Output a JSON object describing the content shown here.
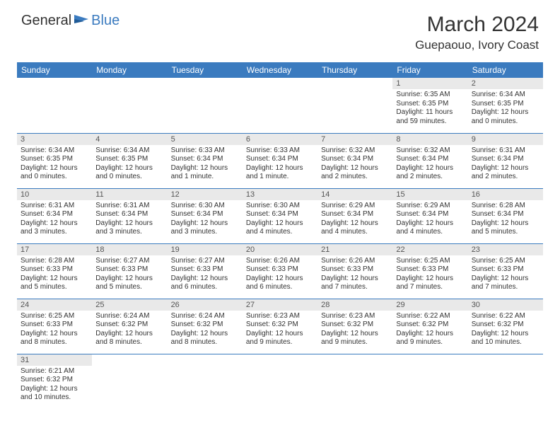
{
  "brand": {
    "part1": "General",
    "part2": "Blue"
  },
  "title": "March 2024",
  "location": "Guepaouo, Ivory Coast",
  "colors": {
    "header_bg": "#3b7bbf",
    "header_text": "#ffffff",
    "daynum_bg": "#e9e9e9",
    "daynum_text": "#555555",
    "border": "#3b7bbf",
    "body_text": "#333333"
  },
  "typography": {
    "title_fontsize": 30,
    "location_fontsize": 17,
    "dayhead_fontsize": 12,
    "daynum_fontsize": 11,
    "body_fontsize": 10
  },
  "dayHeaders": [
    "Sunday",
    "Monday",
    "Tuesday",
    "Wednesday",
    "Thursday",
    "Friday",
    "Saturday"
  ],
  "weeks": [
    [
      null,
      null,
      null,
      null,
      null,
      {
        "n": "1",
        "sr": "Sunrise: 6:35 AM",
        "ss": "Sunset: 6:35 PM",
        "dl1": "Daylight: 11 hours",
        "dl2": "and 59 minutes."
      },
      {
        "n": "2",
        "sr": "Sunrise: 6:34 AM",
        "ss": "Sunset: 6:35 PM",
        "dl1": "Daylight: 12 hours",
        "dl2": "and 0 minutes."
      }
    ],
    [
      {
        "n": "3",
        "sr": "Sunrise: 6:34 AM",
        "ss": "Sunset: 6:35 PM",
        "dl1": "Daylight: 12 hours",
        "dl2": "and 0 minutes."
      },
      {
        "n": "4",
        "sr": "Sunrise: 6:34 AM",
        "ss": "Sunset: 6:35 PM",
        "dl1": "Daylight: 12 hours",
        "dl2": "and 0 minutes."
      },
      {
        "n": "5",
        "sr": "Sunrise: 6:33 AM",
        "ss": "Sunset: 6:34 PM",
        "dl1": "Daylight: 12 hours",
        "dl2": "and 1 minute."
      },
      {
        "n": "6",
        "sr": "Sunrise: 6:33 AM",
        "ss": "Sunset: 6:34 PM",
        "dl1": "Daylight: 12 hours",
        "dl2": "and 1 minute."
      },
      {
        "n": "7",
        "sr": "Sunrise: 6:32 AM",
        "ss": "Sunset: 6:34 PM",
        "dl1": "Daylight: 12 hours",
        "dl2": "and 2 minutes."
      },
      {
        "n": "8",
        "sr": "Sunrise: 6:32 AM",
        "ss": "Sunset: 6:34 PM",
        "dl1": "Daylight: 12 hours",
        "dl2": "and 2 minutes."
      },
      {
        "n": "9",
        "sr": "Sunrise: 6:31 AM",
        "ss": "Sunset: 6:34 PM",
        "dl1": "Daylight: 12 hours",
        "dl2": "and 2 minutes."
      }
    ],
    [
      {
        "n": "10",
        "sr": "Sunrise: 6:31 AM",
        "ss": "Sunset: 6:34 PM",
        "dl1": "Daylight: 12 hours",
        "dl2": "and 3 minutes."
      },
      {
        "n": "11",
        "sr": "Sunrise: 6:31 AM",
        "ss": "Sunset: 6:34 PM",
        "dl1": "Daylight: 12 hours",
        "dl2": "and 3 minutes."
      },
      {
        "n": "12",
        "sr": "Sunrise: 6:30 AM",
        "ss": "Sunset: 6:34 PM",
        "dl1": "Daylight: 12 hours",
        "dl2": "and 3 minutes."
      },
      {
        "n": "13",
        "sr": "Sunrise: 6:30 AM",
        "ss": "Sunset: 6:34 PM",
        "dl1": "Daylight: 12 hours",
        "dl2": "and 4 minutes."
      },
      {
        "n": "14",
        "sr": "Sunrise: 6:29 AM",
        "ss": "Sunset: 6:34 PM",
        "dl1": "Daylight: 12 hours",
        "dl2": "and 4 minutes."
      },
      {
        "n": "15",
        "sr": "Sunrise: 6:29 AM",
        "ss": "Sunset: 6:34 PM",
        "dl1": "Daylight: 12 hours",
        "dl2": "and 4 minutes."
      },
      {
        "n": "16",
        "sr": "Sunrise: 6:28 AM",
        "ss": "Sunset: 6:34 PM",
        "dl1": "Daylight: 12 hours",
        "dl2": "and 5 minutes."
      }
    ],
    [
      {
        "n": "17",
        "sr": "Sunrise: 6:28 AM",
        "ss": "Sunset: 6:33 PM",
        "dl1": "Daylight: 12 hours",
        "dl2": "and 5 minutes."
      },
      {
        "n": "18",
        "sr": "Sunrise: 6:27 AM",
        "ss": "Sunset: 6:33 PM",
        "dl1": "Daylight: 12 hours",
        "dl2": "and 5 minutes."
      },
      {
        "n": "19",
        "sr": "Sunrise: 6:27 AM",
        "ss": "Sunset: 6:33 PM",
        "dl1": "Daylight: 12 hours",
        "dl2": "and 6 minutes."
      },
      {
        "n": "20",
        "sr": "Sunrise: 6:26 AM",
        "ss": "Sunset: 6:33 PM",
        "dl1": "Daylight: 12 hours",
        "dl2": "and 6 minutes."
      },
      {
        "n": "21",
        "sr": "Sunrise: 6:26 AM",
        "ss": "Sunset: 6:33 PM",
        "dl1": "Daylight: 12 hours",
        "dl2": "and 7 minutes."
      },
      {
        "n": "22",
        "sr": "Sunrise: 6:25 AM",
        "ss": "Sunset: 6:33 PM",
        "dl1": "Daylight: 12 hours",
        "dl2": "and 7 minutes."
      },
      {
        "n": "23",
        "sr": "Sunrise: 6:25 AM",
        "ss": "Sunset: 6:33 PM",
        "dl1": "Daylight: 12 hours",
        "dl2": "and 7 minutes."
      }
    ],
    [
      {
        "n": "24",
        "sr": "Sunrise: 6:25 AM",
        "ss": "Sunset: 6:33 PM",
        "dl1": "Daylight: 12 hours",
        "dl2": "and 8 minutes."
      },
      {
        "n": "25",
        "sr": "Sunrise: 6:24 AM",
        "ss": "Sunset: 6:32 PM",
        "dl1": "Daylight: 12 hours",
        "dl2": "and 8 minutes."
      },
      {
        "n": "26",
        "sr": "Sunrise: 6:24 AM",
        "ss": "Sunset: 6:32 PM",
        "dl1": "Daylight: 12 hours",
        "dl2": "and 8 minutes."
      },
      {
        "n": "27",
        "sr": "Sunrise: 6:23 AM",
        "ss": "Sunset: 6:32 PM",
        "dl1": "Daylight: 12 hours",
        "dl2": "and 9 minutes."
      },
      {
        "n": "28",
        "sr": "Sunrise: 6:23 AM",
        "ss": "Sunset: 6:32 PM",
        "dl1": "Daylight: 12 hours",
        "dl2": "and 9 minutes."
      },
      {
        "n": "29",
        "sr": "Sunrise: 6:22 AM",
        "ss": "Sunset: 6:32 PM",
        "dl1": "Daylight: 12 hours",
        "dl2": "and 9 minutes."
      },
      {
        "n": "30",
        "sr": "Sunrise: 6:22 AM",
        "ss": "Sunset: 6:32 PM",
        "dl1": "Daylight: 12 hours",
        "dl2": "and 10 minutes."
      }
    ],
    [
      {
        "n": "31",
        "sr": "Sunrise: 6:21 AM",
        "ss": "Sunset: 6:32 PM",
        "dl1": "Daylight: 12 hours",
        "dl2": "and 10 minutes."
      },
      null,
      null,
      null,
      null,
      null,
      null
    ]
  ]
}
